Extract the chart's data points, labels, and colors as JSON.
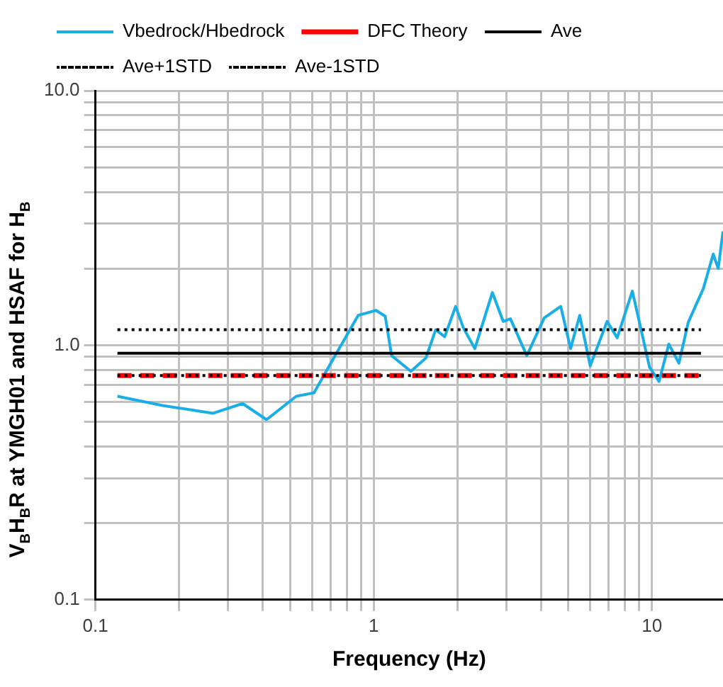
{
  "chart_data": {
    "type": "line",
    "xlabel": "Frequency (Hz)",
    "ylabel": "V$_{B}$H$_{B}$R at YMGH01 and HSAF for H$_{B}$",
    "log": "xy",
    "grid": true,
    "legend": "top",
    "marker": "none",
    "xlim": [
      0.1,
      18
    ],
    "ylim": [
      0.1,
      10
    ],
    "xticks": [
      0.1,
      {
        "value": 0.2,
        "label": null
      },
      {
        "value": 0.3,
        "label": null
      },
      {
        "value": 0.4,
        "label": null
      },
      {
        "value": 0.5,
        "label": null
      },
      {
        "value": 0.6,
        "label": null
      },
      {
        "value": 0.7,
        "label": null
      },
      {
        "value": 0.8,
        "label": null
      },
      {
        "value": 0.9,
        "label": null
      },
      1,
      {
        "value": 2,
        "label": null
      },
      {
        "value": 3,
        "label": null
      },
      {
        "value": 4,
        "label": null
      },
      {
        "value": 5,
        "label": null
      },
      {
        "value": 6,
        "label": null
      },
      {
        "value": 7,
        "label": null
      },
      {
        "value": 8,
        "label": null
      },
      {
        "value": 9,
        "label": null
      },
      10
    ],
    "yticks": [
      0.1,
      {
        "value": 0.2,
        "label": null
      },
      {
        "value": 0.3,
        "label": null
      },
      {
        "value": 0.4,
        "label": null
      },
      {
        "value": 0.5,
        "label": null
      },
      {
        "value": 0.6,
        "label": null
      },
      {
        "value": 0.7,
        "label": null
      },
      {
        "value": 0.8,
        "label": null
      },
      {
        "value": 0.9,
        "label": null
      },
      {
        "value": 1,
        "label": "1.0"
      },
      {
        "value": 2,
        "label": null
      },
      {
        "value": 3,
        "label": null
      },
      {
        "value": 4,
        "label": null
      },
      {
        "value": 5,
        "label": null
      },
      {
        "value": 6,
        "label": null
      },
      {
        "value": 7,
        "label": null
      },
      {
        "value": 8,
        "label": null
      },
      {
        "value": 9,
        "label": null
      },
      {
        "value": 10,
        "label": "10.0"
      }
    ],
    "series": [
      {
        "name": "Vbedrock/Hbedrock",
        "color": "#1aaee6",
        "line_style": "solid",
        "x": [
          0.12,
          0.174,
          0.264,
          0.338,
          0.412,
          0.527,
          0.61,
          0.735,
          0.88,
          1.02,
          1.1,
          1.16,
          1.36,
          1.54,
          1.67,
          1.8,
          1.97,
          2.1,
          2.31,
          2.67,
          2.92,
          3.1,
          3.55,
          4.1,
          4.7,
          5.1,
          5.5,
          6.0,
          6.9,
          7.5,
          8.5,
          9.0,
          9.8,
          10.6,
          11.5,
          12.5,
          13.5,
          15.3,
          16.6,
          17.3,
          18
        ],
        "values": [
          0.63,
          0.58,
          0.54,
          0.59,
          0.51,
          0.63,
          0.65,
          0.93,
          1.31,
          1.37,
          1.3,
          0.91,
          0.79,
          0.89,
          1.15,
          1.08,
          1.42,
          1.17,
          0.97,
          1.61,
          1.24,
          1.27,
          0.91,
          1.28,
          1.42,
          0.97,
          1.31,
          0.83,
          1.24,
          1.07,
          1.63,
          1.24,
          0.82,
          0.72,
          1.01,
          0.85,
          1.23,
          1.67,
          2.28,
          2.0,
          2.8
        ]
      },
      {
        "name": "DFC Theory",
        "color": "#ff0000",
        "line_style": "dashed",
        "x": [
          0.12,
          15
        ],
        "values": [
          0.76,
          0.76
        ]
      },
      {
        "name": "Ave",
        "color": "#000000",
        "line_style": "solid",
        "x": [
          0.12,
          15
        ],
        "values": [
          0.93,
          0.93
        ]
      },
      {
        "name": "Ave+1STD",
        "color": "#000000",
        "line_style": "dotted",
        "x": [
          0.12,
          15
        ],
        "values": [
          1.15,
          1.15
        ]
      },
      {
        "name": "Ave-1STD",
        "color": "#000000",
        "line_style": "dotted",
        "x": [
          0.12,
          15
        ],
        "values": [
          0.76,
          0.76
        ]
      }
    ]
  }
}
